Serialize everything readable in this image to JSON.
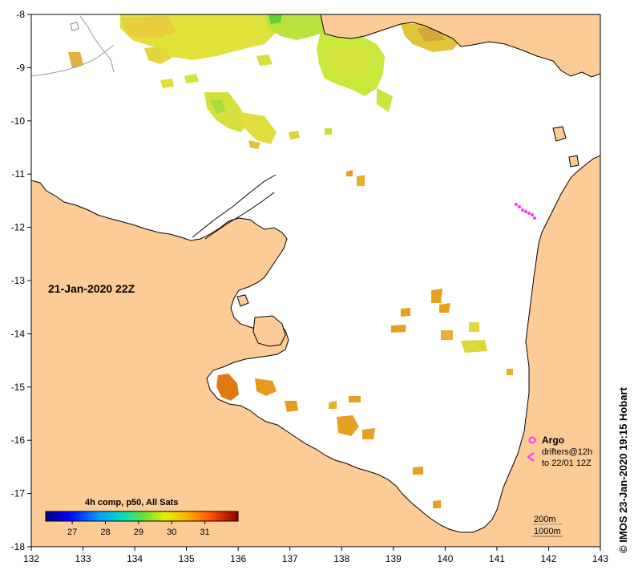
{
  "map": {
    "date_label": "21-Jan-2020 22Z",
    "credit": "© IMOS 23-Jan-2020 19:15 Hobart",
    "x_ticks": [
      "132",
      "133",
      "134",
      "135",
      "136",
      "137",
      "138",
      "139",
      "140",
      "141",
      "142",
      "143"
    ],
    "y_ticks": [
      "-8",
      "-9",
      "-10",
      "-11",
      "-12",
      "-13",
      "-14",
      "-15",
      "-16",
      "-17",
      "-18"
    ],
    "lon_range": [
      132,
      143
    ],
    "lat_range": [
      -18,
      -8
    ],
    "colors": {
      "land": "#fccb96",
      "sea": "#ffffff",
      "coast": "#000000",
      "argo": "#ff33ff"
    }
  },
  "legend": {
    "argo_label": "Argo",
    "drifters_line1": "drifters@12h",
    "drifters_line2": "to 22/01 12Z",
    "contour_200": "200m",
    "contour_1000": "1000m"
  },
  "colorbar": {
    "title": "4h comp, p50, All Sats",
    "ticks": [
      "27",
      "28",
      "29",
      "30",
      "31"
    ],
    "range": [
      26.2,
      32.0
    ],
    "tick_values": [
      27,
      28,
      29,
      30,
      31
    ]
  }
}
